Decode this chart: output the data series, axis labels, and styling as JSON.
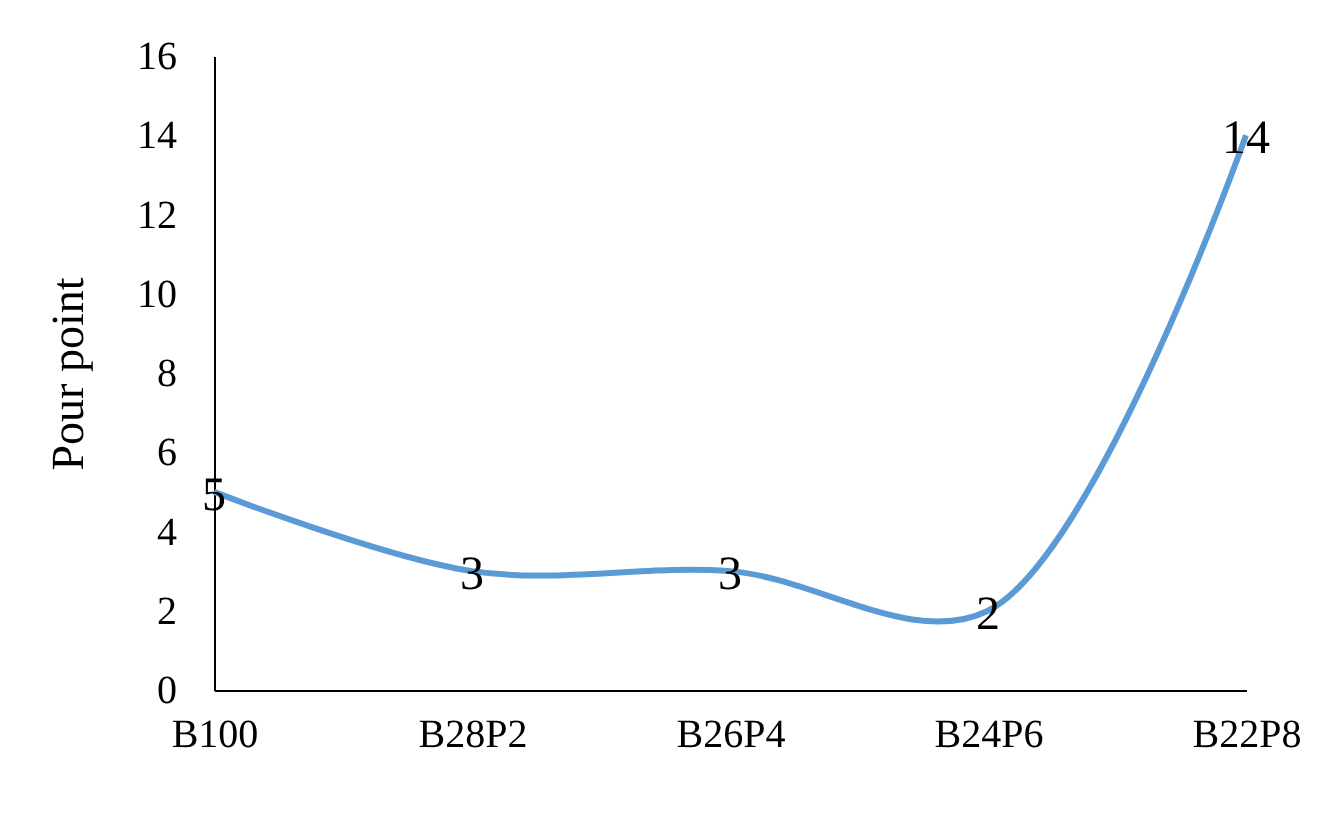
{
  "chart_data": {
    "type": "line",
    "ylabel": "Pour point",
    "categories": [
      "B100",
      "B28P2",
      "B26P4",
      "B24P6",
      "B22P8"
    ],
    "series": [
      {
        "color": "#5b9bd5",
        "values": [
          5,
          3,
          3,
          2,
          14
        ]
      }
    ],
    "ylim": [
      0,
      16
    ],
    "yticks": [
      0,
      2,
      4,
      6,
      8,
      10,
      12,
      14,
      16
    ],
    "data_labels": true,
    "grid": false,
    "legend": false
  }
}
